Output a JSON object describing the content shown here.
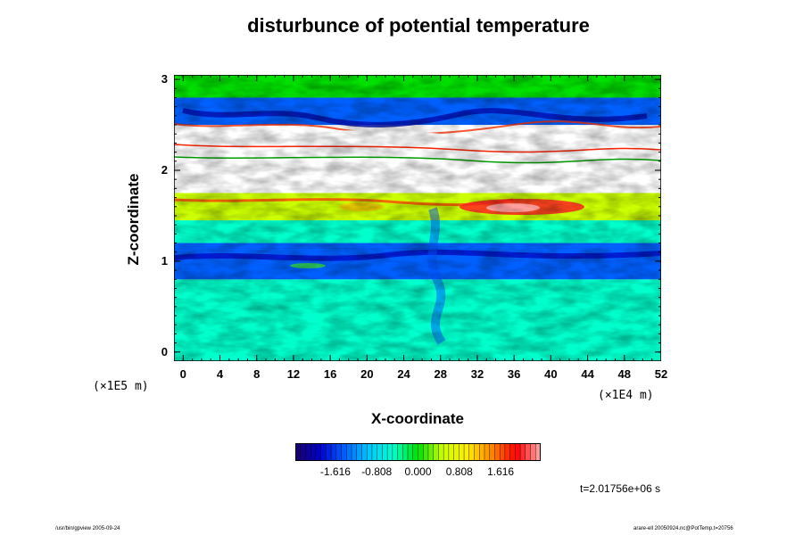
{
  "chart_data": {
    "type": "heatmap",
    "title": "disturbunce of potential temperature",
    "xlabel": "X-coordinate",
    "ylabel": "Z-coordinate",
    "x_unit": "(×1E4 m)",
    "z_unit": "(×1E5 m)",
    "xlim": [
      -1,
      52
    ],
    "ylim": [
      -0.1,
      3.05
    ],
    "x_ticks": [
      "0",
      "4",
      "8",
      "12",
      "16",
      "20",
      "24",
      "28",
      "32",
      "36",
      "40",
      "44",
      "48",
      "52"
    ],
    "y_ticks": [
      "0",
      "1",
      "2",
      "3"
    ],
    "colorbar": {
      "ticks": [
        "-1.616",
        "-0.808",
        "0.000",
        "0.808",
        "1.616"
      ],
      "range": [
        -2.4,
        2.4
      ]
    },
    "time_label": "t=2.01756e+06 s",
    "field_layers": [
      {
        "z_range": [
          -0.1,
          0.8
        ],
        "value": -0.7
      },
      {
        "z_range": [
          0.8,
          1.2
        ],
        "value": -1.3
      },
      {
        "z_range": [
          1.2,
          1.45
        ],
        "value": -0.3
      },
      {
        "z_range": [
          1.45,
          1.75
        ],
        "value": 0.5
      },
      {
        "z_range": [
          1.75,
          2.5
        ],
        "value": null
      },
      {
        "z_range": [
          2.5,
          2.8
        ],
        "value": -1.6
      },
      {
        "z_range": [
          2.8,
          3.05
        ],
        "value": 0.2
      }
    ],
    "missing_color": "#ffffff",
    "colormap": [
      "#1a0066",
      "#0000cc",
      "#0060ff",
      "#00c8ff",
      "#00ffcc",
      "#00e000",
      "#ccff00",
      "#ffee00",
      "#ff8800",
      "#ff0000",
      "#ffaaaa"
    ]
  },
  "footer_left": "/usr/bin/gpview 2005-09-24",
  "footer_right": "arare-ell 20050924.nc@PotTemp,t=20756"
}
